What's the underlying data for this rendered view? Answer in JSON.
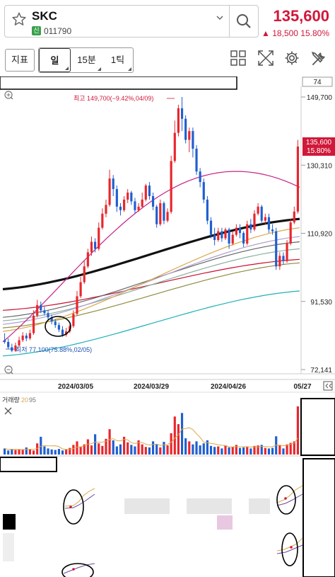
{
  "header": {
    "stock_name": "SKC",
    "badge": "신",
    "stock_code": "011790",
    "price": "135,600",
    "change": "▲ 18,500   15.80%"
  },
  "toolbar": {
    "indicator_label": "지표",
    "day_label": "일",
    "min15_label": "15분",
    "tick_label": "1틱"
  },
  "icons": [
    "star-icon",
    "chevron-down-icon",
    "search-icon",
    "grid-icon",
    "expand-icon",
    "gear-icon",
    "tools-icon",
    "zoom-in-icon",
    "zoom-out-icon",
    "close-icon"
  ],
  "colors": {
    "up": "#e8262d",
    "down": "#1f5fcf",
    "accent": "#d0183a",
    "badge": "#3aa04a"
  },
  "chart": {
    "top_value_box": "74",
    "high_annotation": "최고 149,700(−9.42%,04/09)",
    "low_annotation": "최저 77,100(75.88%,02/05)",
    "price_tag": "135,600",
    "price_tag_pct": "15.80%",
    "y_labels": [
      "149,700",
      "130,310",
      "110,920",
      "91,530",
      "72,141"
    ],
    "x_labels": [
      "2024/03/05",
      "2024/03/29",
      "2024/04/26",
      "05/27"
    ],
    "volume_label": "거래량",
    "volume_ma1": "20",
    "volume_ma2": "95"
  },
  "chart_data": {
    "type": "candlestick",
    "y_axis_ticks": [
      149700,
      130310,
      110920,
      91530,
      72141
    ],
    "current_price": 135600,
    "high": {
      "value": 149700,
      "date": "04/09"
    },
    "low": {
      "value": 77100,
      "date": "02/05"
    },
    "candles": [
      [
        80500,
        80000,
        82500,
        79500
      ],
      [
        80000,
        78500,
        81000,
        78000
      ],
      [
        78500,
        77500,
        79500,
        77100
      ],
      [
        77500,
        79000,
        79800,
        77200
      ],
      [
        79000,
        80500,
        81500,
        78600
      ],
      [
        80500,
        81800,
        82800,
        80000
      ],
      [
        81800,
        81000,
        82500,
        80200
      ],
      [
        81000,
        82500,
        83500,
        80500
      ],
      [
        82500,
        87500,
        89000,
        82000
      ],
      [
        87500,
        90500,
        92000,
        87000
      ],
      [
        90500,
        89000,
        91500,
        88200
      ],
      [
        89000,
        88200,
        90000,
        87500
      ],
      [
        88200,
        87000,
        89000,
        86200
      ],
      [
        87000,
        85800,
        87800,
        85000
      ],
      [
        85800,
        84800,
        86500,
        84000
      ],
      [
        84800,
        83500,
        85500,
        82800
      ],
      [
        83500,
        82000,
        84500,
        81500
      ],
      [
        82000,
        83000,
        84000,
        81500
      ],
      [
        83000,
        84500,
        85000,
        82500
      ],
      [
        84500,
        88000,
        89000,
        84000
      ],
      [
        88000,
        93000,
        94500,
        87500
      ],
      [
        93000,
        97000,
        98500,
        92500
      ],
      [
        97000,
        101500,
        103000,
        96500
      ],
      [
        101500,
        105500,
        106500,
        101000
      ],
      [
        105500,
        108500,
        110000,
        104500
      ],
      [
        108500,
        106500,
        109500,
        105500
      ],
      [
        106500,
        112500,
        114000,
        106000
      ],
      [
        112500,
        116500,
        118000,
        112000
      ],
      [
        116500,
        119000,
        120500,
        115500
      ],
      [
        119000,
        126500,
        129000,
        118500
      ],
      [
        126500,
        123500,
        127500,
        121500
      ],
      [
        123500,
        118500,
        124500,
        117000
      ],
      [
        118500,
        117500,
        119500,
        116000
      ],
      [
        117500,
        120500,
        121500,
        117000
      ],
      [
        120500,
        122500,
        123500,
        119500
      ],
      [
        122500,
        120000,
        123000,
        119000
      ],
      [
        120000,
        117500,
        121000,
        116500
      ],
      [
        117500,
        118500,
        119500,
        117000
      ],
      [
        118500,
        120500,
        122500,
        118000
      ],
      [
        120500,
        124500,
        125000,
        120000
      ],
      [
        124500,
        121500,
        125500,
        120500
      ],
      [
        121500,
        118500,
        122500,
        117500
      ],
      [
        118500,
        113500,
        119000,
        112500
      ],
      [
        113500,
        119500,
        120500,
        113000
      ],
      [
        119500,
        114500,
        120000,
        113500
      ],
      [
        114500,
        117000,
        118000,
        114000
      ],
      [
        117000,
        131500,
        133000,
        116500
      ],
      [
        131500,
        139500,
        143000,
        131000
      ],
      [
        139500,
        146500,
        147500,
        138500
      ],
      [
        146500,
        143500,
        149700,
        140000
      ],
      [
        143500,
        137500,
        144500,
        136500
      ],
      [
        137500,
        140000,
        141000,
        134000
      ],
      [
        140000,
        135000,
        141000,
        132500
      ],
      [
        135000,
        128500,
        136000,
        127500
      ],
      [
        128500,
        125500,
        129500,
        124000
      ],
      [
        125500,
        120500,
        126500,
        119500
      ],
      [
        120500,
        114500,
        121500,
        113500
      ],
      [
        114500,
        110500,
        115500,
        109500
      ],
      [
        110500,
        109000,
        112500,
        107500
      ],
      [
        109000,
        111500,
        112500,
        108500
      ],
      [
        111500,
        109500,
        112500,
        108500
      ],
      [
        109500,
        112000,
        112500,
        109000
      ],
      [
        112000,
        108000,
        112500,
        106500
      ],
      [
        108000,
        110500,
        111500,
        107500
      ],
      [
        110500,
        112500,
        113500,
        110000
      ],
      [
        112500,
        111000,
        113500,
        109500
      ],
      [
        111000,
        108000,
        111500,
        107000
      ],
      [
        108000,
        113500,
        114500,
        107500
      ],
      [
        113500,
        112000,
        115000,
        111000
      ],
      [
        112000,
        116500,
        117500,
        111500
      ],
      [
        116500,
        118500,
        119500,
        116000
      ],
      [
        118500,
        114500,
        119000,
        113500
      ],
      [
        114500,
        115500,
        116500,
        113500
      ],
      [
        115500,
        112000,
        116500,
        111000
      ],
      [
        112000,
        111500,
        113500,
        110500
      ],
      [
        111500,
        101500,
        112500,
        100500
      ],
      [
        101500,
        104500,
        105500,
        100500
      ],
      [
        104500,
        103000,
        105500,
        102000
      ],
      [
        103000,
        108000,
        109000,
        102500
      ],
      [
        108000,
        114000,
        115000,
        107500
      ],
      [
        114000,
        117100,
        118500,
        113500
      ],
      [
        117100,
        135600,
        137500,
        116500
      ]
    ],
    "moving_averages_approx": [
      {
        "color": "#111111",
        "width": "thick",
        "start": 95000,
        "end": 115000
      },
      {
        "color": "#c8102e",
        "start": 89000,
        "end": 103500
      },
      {
        "color": "#8c8c3c",
        "start": 84000,
        "end": 102500
      },
      {
        "color": "#666666",
        "start": 87000,
        "end": 108500
      },
      {
        "color": "#8ab0a0",
        "start": 86000,
        "end": 106500
      },
      {
        "color": "#b0a0d0",
        "start": 85000,
        "end": 110000
      },
      {
        "color": "#d9a84a",
        "start": 83000,
        "end": 112500
      },
      {
        "color": "#c4238a",
        "start": 80000,
        "end": 124000
      },
      {
        "color": "#20b0b8",
        "start": 76000,
        "end": 94500
      }
    ],
    "x_labels": [
      "2024/03/05",
      "2024/03/29",
      "2024/04/26",
      "05/27"
    ],
    "volume": [
      1.2,
      0.8,
      1.1,
      0.9,
      1.0,
      0.9,
      1.4,
      1.0,
      0.8,
      2.2,
      3.5,
      1.6,
      1.2,
      1.0,
      0.9,
      1.1,
      0.8,
      1.0,
      1.3,
      1.9,
      2.6,
      1.5,
      2.0,
      3.0,
      1.8,
      4.0,
      2.2,
      1.7,
      3.1,
      5.0,
      2.8,
      1.6,
      2.0,
      3.5,
      2.4,
      1.9,
      1.6,
      2.8,
      2.0,
      1.5,
      1.4,
      2.6,
      2.0,
      1.4,
      2.5,
      1.8,
      4.2,
      7.5,
      6.0,
      8.2,
      3.2,
      2.6,
      2.0,
      2.6,
      1.8,
      2.2,
      2.8,
      1.7,
      1.5,
      1.6,
      1.2,
      1.8,
      1.4,
      1.5,
      1.9,
      1.3,
      1.4,
      1.6,
      1.2,
      1.7,
      1.8,
      1.9,
      1.3,
      1.2,
      1.3,
      3.6,
      1.8,
      1.2,
      2.0,
      2.3,
      2.6,
      9.5
    ]
  }
}
